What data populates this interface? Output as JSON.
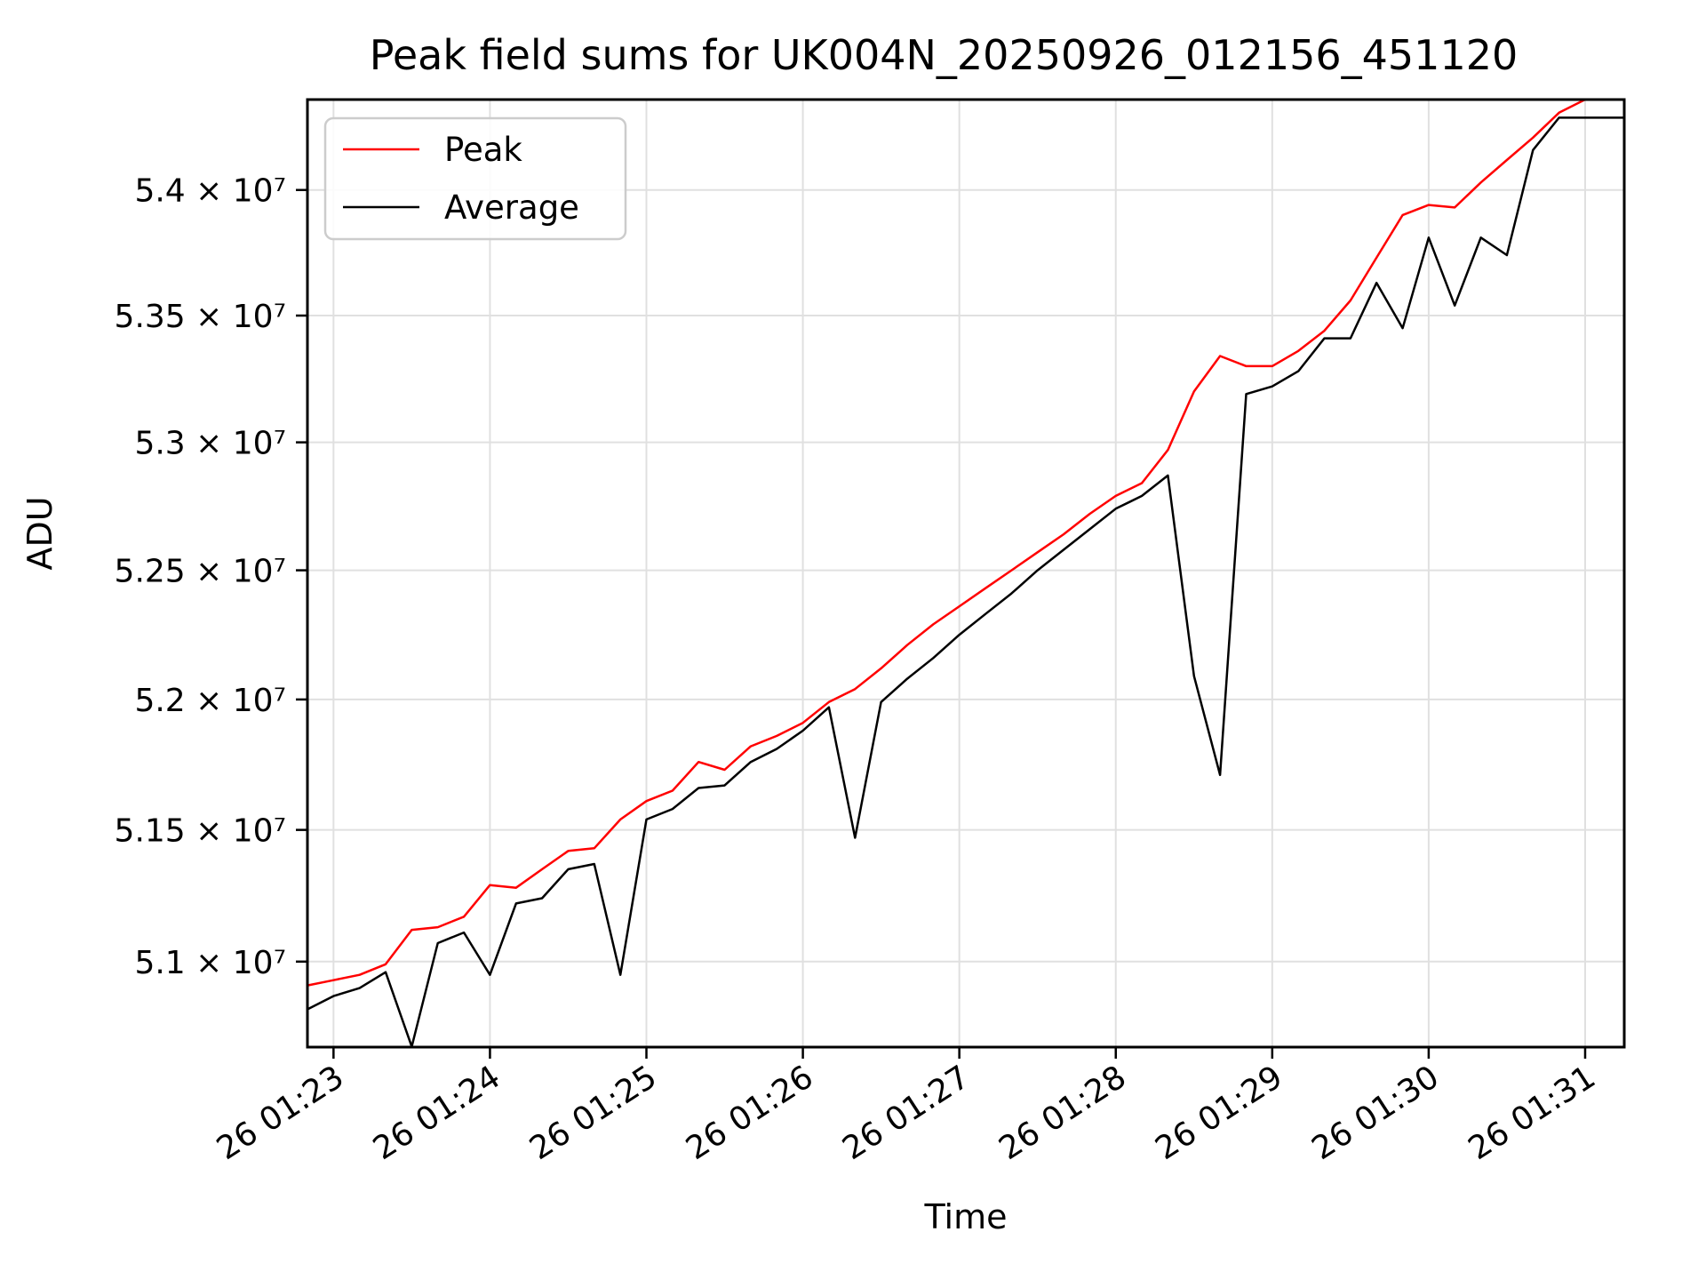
{
  "chart_data": {
    "type": "line",
    "title": "Peak field sums for UK004N_20250926_012156_451120",
    "xlabel": "Time",
    "ylabel": "ADU",
    "y_scale": "log",
    "ylim": [
      50678000,
      54363000
    ],
    "grid": true,
    "grid_color": "#e0e0e0",
    "legend_position": "upper left",
    "x_ticks": [
      {
        "label": "26 01:23",
        "time": "01:23:00"
      },
      {
        "label": "26 01:24",
        "time": "01:24:00"
      },
      {
        "label": "26 01:25",
        "time": "01:25:00"
      },
      {
        "label": "26 01:26",
        "time": "01:26:00"
      },
      {
        "label": "26 01:27",
        "time": "01:27:00"
      },
      {
        "label": "26 01:28",
        "time": "01:28:00"
      },
      {
        "label": "26 01:29",
        "time": "01:29:00"
      },
      {
        "label": "26 01:30",
        "time": "01:30:00"
      },
      {
        "label": "26 01:31",
        "time": "01:31:00"
      }
    ],
    "y_ticks": [
      {
        "label": "5.1 × 10⁷",
        "value": 51000000
      },
      {
        "label": "5.15 × 10⁷",
        "value": 51500000
      },
      {
        "label": "5.2 × 10⁷",
        "value": 52000000
      },
      {
        "label": "5.25 × 10⁷",
        "value": 52500000
      },
      {
        "label": "5.3 × 10⁷",
        "value": 53000000
      },
      {
        "label": "5.35 × 10⁷",
        "value": 53500000
      },
      {
        "label": "5.4 × 10⁷",
        "value": 54000000
      }
    ],
    "x": [
      "01:22:50",
      "01:23:00",
      "01:23:10",
      "01:23:20",
      "01:23:30",
      "01:23:40",
      "01:23:50",
      "01:24:00",
      "01:24:10",
      "01:24:20",
      "01:24:30",
      "01:24:40",
      "01:24:50",
      "01:25:00",
      "01:25:10",
      "01:25:20",
      "01:25:30",
      "01:25:40",
      "01:25:50",
      "01:26:00",
      "01:26:10",
      "01:26:20",
      "01:26:30",
      "01:26:40",
      "01:26:50",
      "01:27:00",
      "01:27:10",
      "01:27:20",
      "01:27:30",
      "01:27:40",
      "01:27:50",
      "01:28:00",
      "01:28:10",
      "01:28:20",
      "01:28:30",
      "01:28:40",
      "01:28:50",
      "01:29:00",
      "01:29:10",
      "01:29:20",
      "01:29:30",
      "01:29:40",
      "01:29:50",
      "01:30:00",
      "01:30:10",
      "01:30:20",
      "01:30:30",
      "01:30:40",
      "01:30:50",
      "01:31:00",
      "01:31:10",
      "01:31:15"
    ],
    "series": [
      {
        "name": "Peak",
        "color": "#ff0000",
        "values": [
          50910000,
          50930000,
          50950000,
          50990000,
          51120000,
          51130000,
          51170000,
          51290000,
          51280000,
          51350000,
          51420000,
          51430000,
          51540000,
          51610000,
          51650000,
          51760000,
          51730000,
          51820000,
          51860000,
          51910000,
          51990000,
          52040000,
          52120000,
          52210000,
          52290000,
          52360000,
          52430000,
          52500000,
          52570000,
          52640000,
          52720000,
          52790000,
          52840000,
          52970000,
          53200000,
          53340000,
          53300000,
          53300000,
          53360000,
          53440000,
          53560000,
          53730000,
          53900000,
          53940000,
          53930000,
          54030000,
          54120000,
          54210000,
          54310000,
          54420000,
          54440000,
          54440000
        ]
      },
      {
        "name": "Average",
        "color": "#000000",
        "values": [
          50820000,
          50870000,
          50900000,
          50960000,
          50680000,
          51070000,
          51110000,
          50950000,
          51220000,
          51240000,
          51350000,
          51370000,
          50950000,
          51540000,
          51580000,
          51660000,
          51670000,
          51760000,
          51810000,
          51880000,
          51970000,
          51470000,
          51990000,
          52080000,
          52160000,
          52250000,
          52330000,
          52410000,
          52500000,
          52580000,
          52660000,
          52740000,
          52790000,
          52870000,
          52090000,
          51710000,
          53190000,
          53220000,
          53280000,
          53410000,
          53410000,
          53630000,
          53450000,
          53810000,
          53540000,
          53810000,
          53740000,
          54160000,
          54290000,
          54290000,
          54290000,
          54290000
        ]
      }
    ]
  }
}
